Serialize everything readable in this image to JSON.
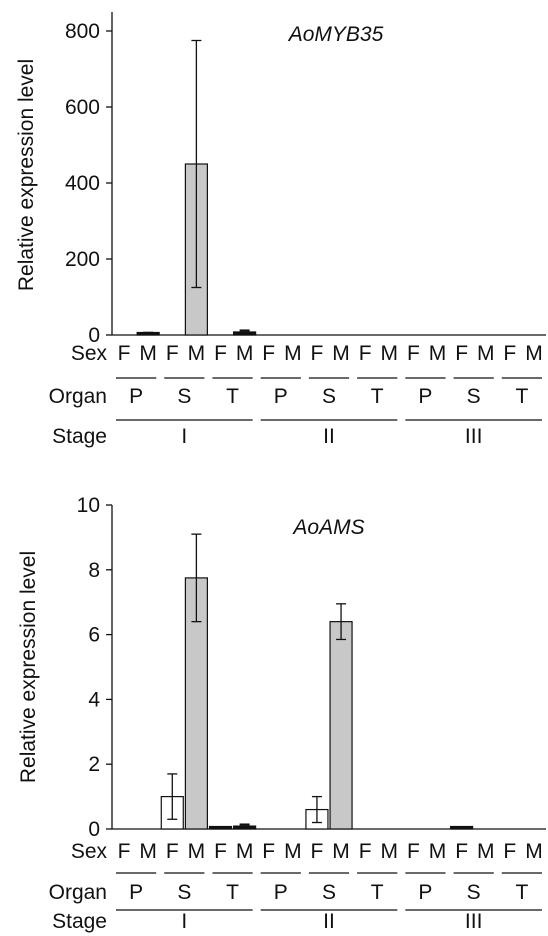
{
  "colors": {
    "female_bar": "#ffffff",
    "male_bar": "#c8c8c8",
    "axis": "#111111"
  },
  "row_labels": {
    "sex": "Sex",
    "organ": "Organ",
    "stage": "Stage"
  },
  "sex_labels": [
    "F",
    "M"
  ],
  "organ_labels": [
    "P",
    "S",
    "T"
  ],
  "stage_labels": [
    "I",
    "II",
    "III"
  ],
  "chart_data": [
    {
      "type": "bar",
      "title": "AoMYB35",
      "ylabel": "Relative expression level",
      "xlabel": "",
      "ylim": [
        0,
        850
      ],
      "yticks": [
        0,
        200,
        400,
        600,
        800
      ],
      "grid": false,
      "categories": [
        "I-P-F",
        "I-P-M",
        "I-S-F",
        "I-S-M",
        "I-T-F",
        "I-T-M",
        "II-P-F",
        "II-P-M",
        "II-S-F",
        "II-S-M",
        "II-T-F",
        "II-T-M",
        "III-P-F",
        "III-P-M",
        "III-S-F",
        "III-S-M",
        "III-T-F",
        "III-T-M"
      ],
      "values": [
        0,
        4,
        0,
        450,
        0,
        8,
        0,
        0,
        0,
        0,
        0,
        0,
        0,
        0,
        0,
        0,
        0,
        0
      ],
      "errors": [
        0,
        2,
        0,
        325,
        0,
        4,
        0,
        0,
        0,
        0,
        0,
        0,
        0,
        0,
        0,
        0,
        0,
        0
      ]
    },
    {
      "type": "bar",
      "title": "AoAMS",
      "ylabel": "Relative expression level",
      "xlabel": "",
      "ylim": [
        0,
        10
      ],
      "yticks": [
        0,
        2,
        4,
        6,
        8,
        10
      ],
      "grid": false,
      "categories": [
        "I-P-F",
        "I-P-M",
        "I-S-F",
        "I-S-M",
        "I-T-F",
        "I-T-M",
        "II-P-F",
        "II-P-M",
        "II-S-F",
        "II-S-M",
        "II-T-F",
        "II-T-M",
        "III-P-F",
        "III-P-M",
        "III-S-F",
        "III-S-M",
        "III-T-F",
        "III-T-M"
      ],
      "values": [
        0,
        0,
        1.0,
        7.75,
        0.04,
        0.09,
        0,
        0,
        0.6,
        6.4,
        0,
        0,
        0,
        0,
        0.05,
        0,
        0,
        0
      ],
      "errors": [
        0,
        0,
        0.7,
        1.35,
        0,
        0.05,
        0,
        0,
        0.4,
        0.55,
        0,
        0,
        0,
        0,
        0,
        0,
        0,
        0
      ]
    }
  ]
}
